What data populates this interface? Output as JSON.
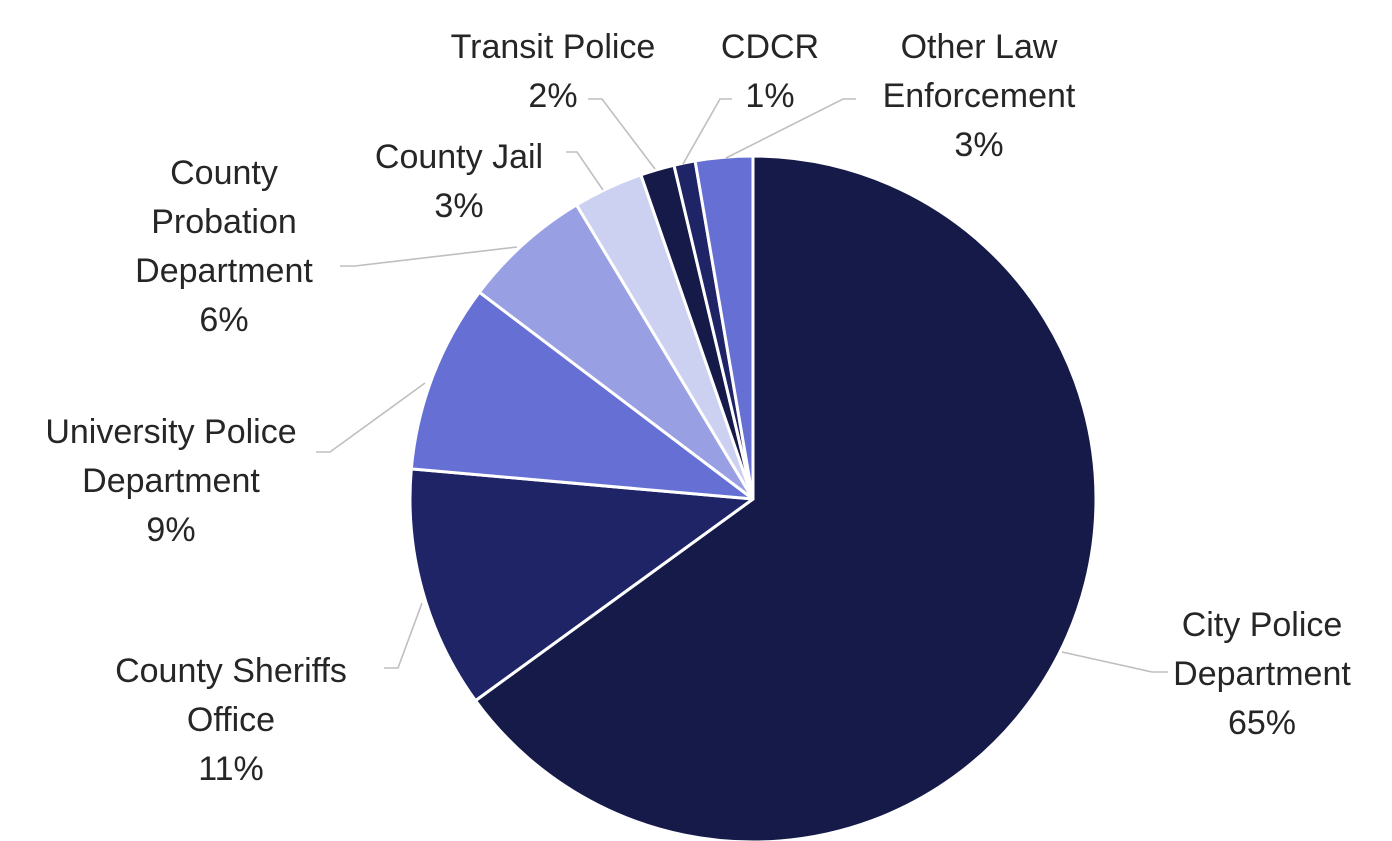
{
  "chart_data": {
    "type": "pie",
    "slices": [
      {
        "label_lines": [
          "City Police",
          "Department"
        ],
        "pct_label": "65%",
        "value": 65.0,
        "color": "#161a48"
      },
      {
        "label_lines": [
          "County Sheriffs",
          "Office"
        ],
        "pct_label": "11%",
        "value": 11.4,
        "color": "#1e2466"
      },
      {
        "label_lines": [
          "University Police",
          "Department"
        ],
        "pct_label": "9%",
        "value": 8.9,
        "color": "#6670d4"
      },
      {
        "label_lines": [
          "County",
          "Probation",
          "Department"
        ],
        "pct_label": "6%",
        "value": 6.1,
        "color": "#989fe2"
      },
      {
        "label_lines": [
          "County Jail"
        ],
        "pct_label": "3%",
        "value": 3.3,
        "color": "#ccd0f1"
      },
      {
        "label_lines": [
          "Transit Police"
        ],
        "pct_label": "2%",
        "value": 1.6,
        "color": "#161a48"
      },
      {
        "label_lines": [
          "CDCR"
        ],
        "pct_label": "1%",
        "value": 1.0,
        "color": "#1e2466"
      },
      {
        "label_lines": [
          "Other Law",
          "Enforcement"
        ],
        "pct_label": "3%",
        "value": 2.7,
        "color": "#6670d4"
      }
    ],
    "start_angle_deg": 0,
    "direction": "clockwise",
    "legend": "none",
    "labels": "outside-with-leader-lines"
  }
}
